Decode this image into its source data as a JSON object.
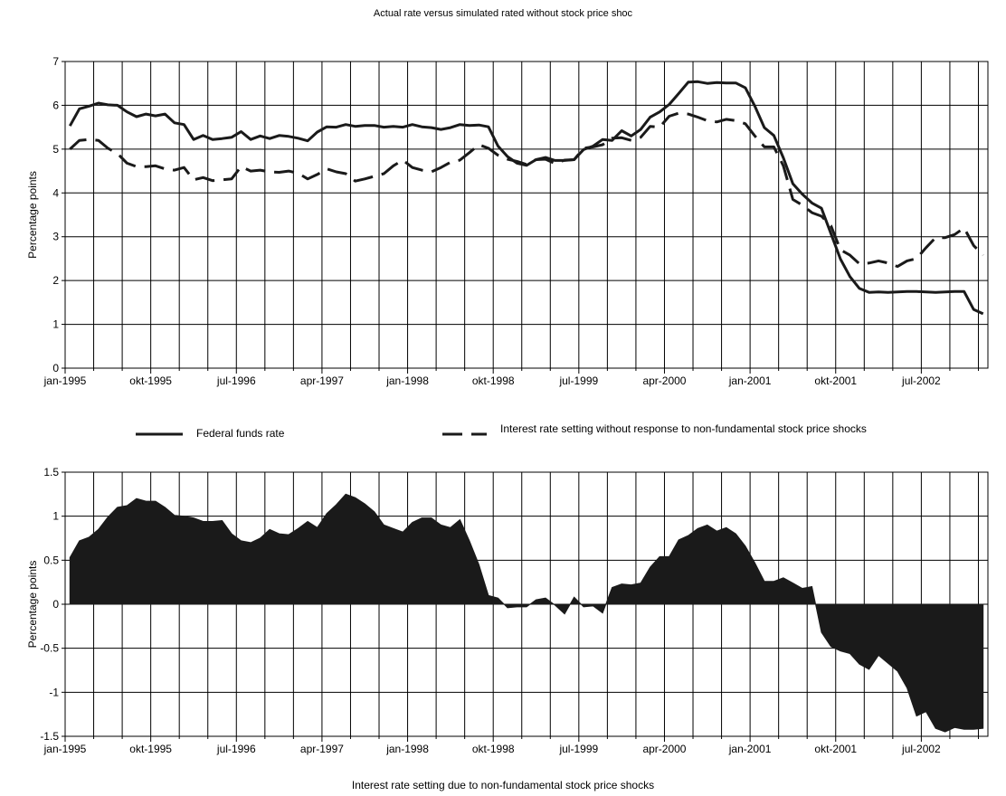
{
  "title": "Actual rate versus simulated rated without stock price shoc",
  "legend": {
    "series_a": "Federal funds rate",
    "series_b": "Interest rate setting without response to non-fundamental stock price shocks"
  },
  "bottom_caption": "Interest rate setting due to non-fundamental stock price shocks",
  "colors": {
    "line": "#1a1a1a",
    "fill": "#1a1a1a",
    "grid": "#000000"
  },
  "chart_data": [
    {
      "type": "line",
      "title": "Actual rate versus simulated rated without stock price shoc",
      "xlabel": "",
      "ylabel": "Percentage points",
      "ylim": [
        0,
        7
      ],
      "yticks": [
        0,
        1,
        2,
        3,
        4,
        5,
        6,
        7
      ],
      "x_tick_labels": [
        "jan-1995",
        "okt-1995",
        "jul-1996",
        "apr-1997",
        "jan-1998",
        "okt-1998",
        "jul-1999",
        "apr-2000",
        "jan-2001",
        "okt-2001",
        "jul-2002"
      ],
      "x_start": "1995-01",
      "x_end": "2002-11",
      "grid": true,
      "legend_position": "below",
      "series": [
        {
          "name": "Federal funds rate",
          "style": "solid",
          "values": [
            5.53,
            5.92,
            5.98,
            6.05,
            6.01,
            6.0,
            5.85,
            5.74,
            5.8,
            5.76,
            5.8,
            5.6,
            5.56,
            5.22,
            5.31,
            5.22,
            5.24,
            5.27,
            5.4,
            5.22,
            5.3,
            5.24,
            5.31,
            5.29,
            5.25,
            5.19,
            5.39,
            5.51,
            5.5,
            5.56,
            5.52,
            5.54,
            5.54,
            5.5,
            5.52,
            5.5,
            5.56,
            5.51,
            5.49,
            5.45,
            5.49,
            5.56,
            5.54,
            5.55,
            5.51,
            5.07,
            4.83,
            4.68,
            4.63,
            4.76,
            4.81,
            4.74,
            4.74,
            4.76,
            4.99,
            5.07,
            5.22,
            5.2,
            5.42,
            5.3,
            5.45,
            5.73,
            5.85,
            6.02,
            6.27,
            6.53,
            6.54,
            6.5,
            6.52,
            6.51,
            6.51,
            6.4,
            5.98,
            5.49,
            5.31,
            4.8,
            4.21,
            3.97,
            3.77,
            3.65,
            3.07,
            2.49,
            2.09,
            1.82,
            1.73,
            1.74,
            1.73,
            1.74,
            1.75,
            1.75,
            1.74,
            1.73,
            1.74,
            1.75,
            1.75,
            1.34,
            1.24
          ]
        },
        {
          "name": "Interest rate setting without response to non-fundamental stock price shocks",
          "style": "dashed",
          "values": [
            5.0,
            5.2,
            5.22,
            5.2,
            5.02,
            4.9,
            4.68,
            4.6,
            4.6,
            4.62,
            4.55,
            4.52,
            4.58,
            4.3,
            4.35,
            4.28,
            4.3,
            4.32,
            4.6,
            4.5,
            4.52,
            4.48,
            4.47,
            4.5,
            4.45,
            4.32,
            4.42,
            4.55,
            4.48,
            4.44,
            4.27,
            4.32,
            4.38,
            4.44,
            4.62,
            4.75,
            4.58,
            4.52,
            4.48,
            4.58,
            4.7,
            4.75,
            4.92,
            5.1,
            5.02,
            4.86,
            4.77,
            4.72,
            4.65,
            4.76,
            4.77,
            4.67,
            4.75,
            4.76,
            5.02,
            5.05,
            5.1,
            5.25,
            5.26,
            5.2,
            5.27,
            5.52,
            5.5,
            5.75,
            5.82,
            5.8,
            5.73,
            5.65,
            5.62,
            5.68,
            5.65,
            5.58,
            5.3,
            5.05,
            5.05,
            4.62,
            3.85,
            3.72,
            3.55,
            3.47,
            3.25,
            2.7,
            2.58,
            2.38,
            2.4,
            2.45,
            2.4,
            2.32,
            2.45,
            2.5,
            2.75,
            2.98,
            2.98,
            3.05,
            3.2,
            2.8,
            2.58
          ]
        }
      ]
    },
    {
      "type": "area",
      "title": "Interest rate setting due to non-fundamental stock price shocks",
      "xlabel": "",
      "ylabel": "Percentage points",
      "ylim": [
        -1.5,
        1.5
      ],
      "yticks": [
        -1.5,
        -1,
        -0.5,
        0,
        0.5,
        1,
        1.5
      ],
      "x_tick_labels": [
        "jan-1995",
        "okt-1995",
        "jul-1996",
        "apr-1997",
        "jan-1998",
        "okt-1998",
        "jul-1999",
        "apr-2000",
        "jan-2001",
        "okt-2001",
        "jul-2002"
      ],
      "x_start": "1995-01",
      "x_end": "2002-11",
      "grid": true,
      "series": [
        {
          "name": "Interest rate setting due to non-fundamental stock price shocks",
          "values": [
            0.53,
            0.72,
            0.76,
            0.85,
            0.99,
            1.1,
            1.12,
            1.2,
            1.17,
            1.17,
            1.1,
            1.01,
            1.0,
            0.98,
            0.94,
            0.94,
            0.95,
            0.8,
            0.72,
            0.7,
            0.75,
            0.85,
            0.8,
            0.79,
            0.86,
            0.94,
            0.87,
            1.03,
            1.13,
            1.25,
            1.21,
            1.14,
            1.05,
            0.9,
            0.86,
            0.82,
            0.93,
            0.98,
            0.98,
            0.9,
            0.87,
            0.96,
            0.72,
            0.45,
            0.1,
            0.07,
            -0.04,
            -0.03,
            -0.03,
            0.05,
            0.07,
            -0.01,
            -0.11,
            0.08,
            -0.03,
            -0.02,
            -0.1,
            0.19,
            0.23,
            0.22,
            0.24,
            0.42,
            0.54,
            0.54,
            0.73,
            0.78,
            0.86,
            0.9,
            0.83,
            0.87,
            0.8,
            0.66,
            0.47,
            0.26,
            0.26,
            0.3,
            0.24,
            0.18,
            0.2,
            -0.32,
            -0.48,
            -0.53,
            -0.56,
            -0.68,
            -0.74,
            -0.58,
            -0.67,
            -0.76,
            -0.95,
            -1.27,
            -1.22,
            -1.41,
            -1.45,
            -1.4,
            -1.42,
            -1.42,
            -1.41
          ]
        }
      ]
    }
  ]
}
